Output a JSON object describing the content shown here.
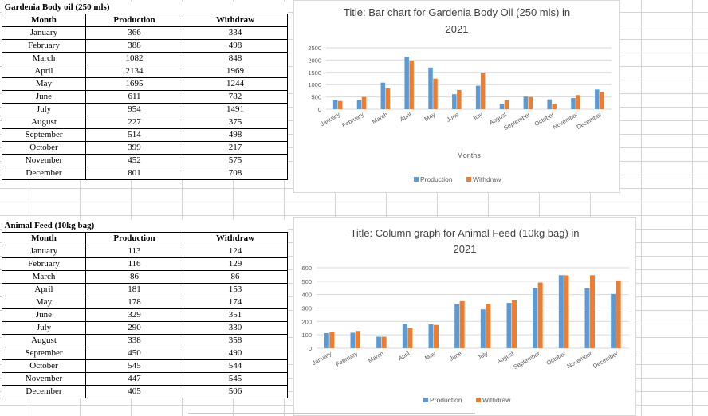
{
  "colors": {
    "production": "#5b9bd5",
    "withdraw": "#ed7d31",
    "grid": "#d9d9d9"
  },
  "table1": {
    "title": "Gardenia Body oil (250 mls)",
    "headers": [
      "Month",
      "Production",
      "Withdraw"
    ],
    "rows": [
      [
        "January",
        "366",
        "334"
      ],
      [
        "February",
        "388",
        "498"
      ],
      [
        "March",
        "1082",
        "848"
      ],
      [
        "April",
        "2134",
        "1969"
      ],
      [
        "May",
        "1695",
        "1244"
      ],
      [
        "June",
        "611",
        "782"
      ],
      [
        "July",
        "954",
        "1491"
      ],
      [
        "August",
        "227",
        "375"
      ],
      [
        "September",
        "514",
        "498"
      ],
      [
        "October",
        "399",
        "217"
      ],
      [
        "November",
        "452",
        "575"
      ],
      [
        "December",
        "801",
        "708"
      ]
    ]
  },
  "table2": {
    "title": "Animal Feed (10kg bag)",
    "headers": [
      "Month",
      "Production",
      "Withdraw"
    ],
    "rows": [
      [
        "January",
        "113",
        "124"
      ],
      [
        "February",
        "116",
        "129"
      ],
      [
        "March",
        "86",
        "86"
      ],
      [
        "April",
        "181",
        "153"
      ],
      [
        "May",
        "178",
        "174"
      ],
      [
        "June",
        "329",
        "351"
      ],
      [
        "July",
        "290",
        "330"
      ],
      [
        "August",
        "338",
        "358"
      ],
      [
        "September",
        "450",
        "490"
      ],
      [
        "October",
        "545",
        "544"
      ],
      [
        "November",
        "447",
        "545"
      ],
      [
        "December",
        "405",
        "506"
      ]
    ]
  },
  "chart_data": [
    {
      "type": "bar",
      "title_line1": "Title: Bar chart for Gardenia Body Oil (250 mls) in",
      "title_line2": "2021",
      "categories": [
        "January",
        "February",
        "March",
        "April",
        "May",
        "June",
        "July",
        "August",
        "September",
        "October",
        "November",
        "December"
      ],
      "series": [
        {
          "name": "Production",
          "values": [
            366,
            388,
            1082,
            2134,
            1695,
            611,
            954,
            227,
            514,
            399,
            452,
            801
          ]
        },
        {
          "name": "Withdraw",
          "values": [
            334,
            498,
            848,
            1969,
            1244,
            782,
            1491,
            375,
            498,
            217,
            575,
            708
          ]
        }
      ],
      "yticks": [
        0,
        500,
        1000,
        1500,
        2000,
        2500
      ],
      "ylim": [
        0,
        2500
      ],
      "xlabel": "Months",
      "ylabel": ""
    },
    {
      "type": "bar",
      "title_line1": "Title: Column graph for Animal Feed (10kg bag) in",
      "title_line2": "2021",
      "categories": [
        "January",
        "February",
        "March",
        "April",
        "May",
        "June",
        "July",
        "August",
        "September",
        "October",
        "November",
        "December"
      ],
      "series": [
        {
          "name": "Production",
          "values": [
            113,
            116,
            86,
            181,
            178,
            329,
            290,
            338,
            450,
            545,
            447,
            405
          ]
        },
        {
          "name": "Withdraw",
          "values": [
            124,
            129,
            86,
            153,
            174,
            351,
            330,
            358,
            490,
            544,
            545,
            506
          ]
        }
      ],
      "yticks": [
        0,
        100,
        200,
        300,
        400,
        500,
        600
      ],
      "ylim": [
        0,
        600
      ],
      "xlabel": "",
      "ylabel": ""
    }
  ]
}
